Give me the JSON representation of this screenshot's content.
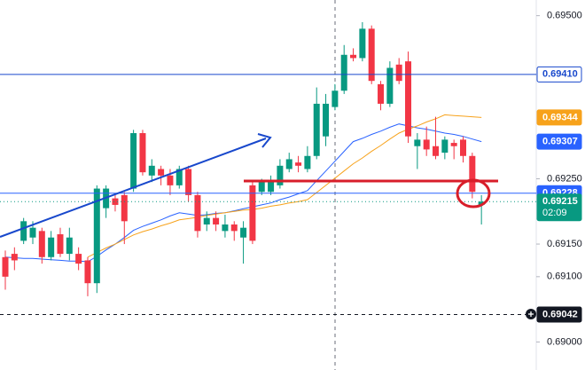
{
  "chart_data": {
    "type": "candlestick",
    "ylim": [
      0.68957,
      0.69524
    ],
    "yticks": [
      {
        "value": 0.695,
        "label": "0.69500"
      },
      {
        "value": 0.6925,
        "label": "0.69250"
      },
      {
        "value": 0.6915,
        "label": "0.69150"
      },
      {
        "value": 0.691,
        "label": "0.69100"
      },
      {
        "value": 0.69,
        "label": "0.69000"
      }
    ],
    "up_color": "#089981",
    "down_color": "#f23645",
    "open": [
      0.6913,
      0.69135,
      0.69155,
      0.6916,
      0.6917,
      0.6913,
      0.69165,
      0.69135,
      0.69135,
      0.69125,
      0.6909,
      0.69205,
      0.6922,
      0.69225,
      0.69235,
      0.6932,
      0.69255,
      0.69265,
      0.69255,
      0.6924,
      0.69265,
      0.69225,
      0.6918,
      0.6919,
      0.6917,
      0.6918,
      0.6916,
      0.6924,
      0.6923,
      0.6923,
      0.6924,
      0.69265,
      0.69275,
      0.69265,
      0.69285,
      0.69315,
      0.6936,
      0.69385,
      0.6944,
      0.69435,
      0.6948,
      0.69395,
      0.69365,
      0.69425,
      0.6943,
      0.693,
      0.6931,
      0.693,
      0.6929,
      0.69305,
      0.6931,
      0.69285,
      0.6921
    ],
    "high": [
      0.6914,
      0.69145,
      0.6919,
      0.69185,
      0.69175,
      0.6917,
      0.69175,
      0.69175,
      0.69145,
      0.6913,
      0.6924,
      0.6924,
      0.69225,
      0.6923,
      0.69325,
      0.69325,
      0.6928,
      0.6927,
      0.69265,
      0.6927,
      0.6927,
      0.6923,
      0.692,
      0.692,
      0.69195,
      0.69185,
      0.69185,
      0.69245,
      0.6925,
      0.69255,
      0.6928,
      0.6929,
      0.69285,
      0.693,
      0.6939,
      0.6938,
      0.69395,
      0.69455,
      0.6945,
      0.6949,
      0.69485,
      0.694,
      0.6943,
      0.69435,
      0.69445,
      0.6932,
      0.6933,
      0.69345,
      0.69315,
      0.6931,
      0.69315,
      0.6929,
      0.69225
    ],
    "low": [
      0.6908,
      0.6911,
      0.6915,
      0.6915,
      0.6912,
      0.69125,
      0.6913,
      0.69125,
      0.6911,
      0.6907,
      0.69075,
      0.6919,
      0.692,
      0.6915,
      0.6923,
      0.69255,
      0.69245,
      0.6924,
      0.69225,
      0.69235,
      0.69215,
      0.6916,
      0.6917,
      0.6917,
      0.6916,
      0.69155,
      0.6912,
      0.6915,
      0.69225,
      0.69225,
      0.69235,
      0.6926,
      0.6926,
      0.6926,
      0.6928,
      0.693,
      0.69355,
      0.6938,
      0.6943,
      0.6943,
      0.69395,
      0.69355,
      0.6936,
      0.69395,
      0.69305,
      0.69265,
      0.69285,
      0.6928,
      0.6928,
      0.6928,
      0.69275,
      0.6922,
      0.6918
    ],
    "close": [
      0.691,
      0.69125,
      0.69185,
      0.69175,
      0.6913,
      0.6916,
      0.69135,
      0.6916,
      0.6912,
      0.6909,
      0.69235,
      0.69235,
      0.6921,
      0.69185,
      0.6932,
      0.6926,
      0.6927,
      0.69255,
      0.6924,
      0.69265,
      0.69225,
      0.6917,
      0.6919,
      0.6918,
      0.6918,
      0.6917,
      0.69175,
      0.69155,
      0.69245,
      0.69245,
      0.6927,
      0.6928,
      0.6927,
      0.69285,
      0.69365,
      0.69365,
      0.69385,
      0.6944,
      0.69435,
      0.6948,
      0.694,
      0.69365,
      0.6942,
      0.694,
      0.69315,
      0.6931,
      0.69295,
      0.69285,
      0.6931,
      0.693,
      0.69285,
      0.6923,
      0.69215
    ],
    "series": [
      {
        "color": "#2962ff",
        "values": [
          0.6913,
          0.69129,
          0.69128,
          0.69128,
          0.69127,
          0.69126,
          0.69125,
          0.69124,
          0.69124,
          0.69123,
          0.69131,
          0.69141,
          0.6915,
          0.6916,
          0.69171,
          0.69177,
          0.69182,
          0.69187,
          0.69193,
          0.69198,
          0.69196,
          0.69194,
          0.69195,
          0.69197,
          0.69198,
          0.69201,
          0.69204,
          0.69207,
          0.6921,
          0.69213,
          0.69218,
          0.69222,
          0.69227,
          0.69232,
          0.69247,
          0.69262,
          0.69277,
          0.69292,
          0.69307,
          0.69312,
          0.69318,
          0.69323,
          0.69329,
          0.69334,
          0.69331,
          0.69328,
          0.69326,
          0.69323,
          0.6932,
          0.69318,
          0.69315,
          0.69311,
          0.69307
        ]
      },
      {
        "color": "#f7a21b",
        "values": [
          null,
          null,
          null,
          null,
          null,
          null,
          null,
          null,
          null,
          0.6913,
          0.69137,
          0.69144,
          0.6915,
          0.69157,
          0.69164,
          0.69169,
          0.69173,
          0.69178,
          0.69182,
          0.69187,
          0.69189,
          0.69191,
          0.69194,
          0.69196,
          0.69198,
          0.692,
          0.69202,
          0.69203,
          0.69205,
          0.69208,
          0.6921,
          0.69213,
          0.69215,
          0.69218,
          0.69229,
          0.6924,
          0.69251,
          0.69262,
          0.69273,
          0.69282,
          0.69292,
          0.69301,
          0.69311,
          0.6932,
          0.69326,
          0.69331,
          0.69337,
          0.69342,
          0.69348,
          0.69347,
          0.69346,
          0.69345,
          0.69344
        ]
      }
    ],
    "price_labels": [
      {
        "value": 0.6941,
        "label": "0.69410",
        "color": "#1848cc",
        "style": "outline",
        "line": "solid"
      },
      {
        "value": 0.69344,
        "label": "0.69344",
        "color": "#f7a21b",
        "style": "filled",
        "line": "none"
      },
      {
        "value": 0.69307,
        "label": "0.69307",
        "color": "#2962ff",
        "style": "filled",
        "line": "none"
      },
      {
        "value": 0.69228,
        "label": "0.69228",
        "color": "#2962ff",
        "style": "filled",
        "line": "solid"
      },
      {
        "value": 0.69215,
        "label": "0.69215",
        "color": "#089981",
        "style": "filled",
        "line": "dotted",
        "countdown": "02:09"
      },
      {
        "value": 0.69042,
        "label": "0.69042",
        "color": "#131722",
        "style": "filled",
        "line": "dashed"
      }
    ]
  }
}
